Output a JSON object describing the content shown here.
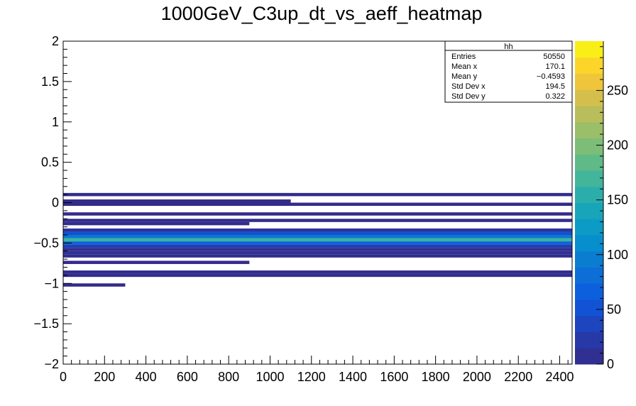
{
  "chart_data": {
    "type": "heatmap",
    "title": "1000GeV_C3up_dt_vs_aeff_heatmap",
    "xlabel": "",
    "ylabel": "",
    "xlim": [
      0,
      2460
    ],
    "ylim": [
      -2,
      2
    ],
    "x_ticks": [
      "0",
      "200",
      "400",
      "600",
      "800",
      "1000",
      "1200",
      "1400",
      "1600",
      "1800",
      "2000",
      "2200",
      "2400"
    ],
    "y_ticks": [
      "2",
      "1.5",
      "1",
      "0.5",
      "0",
      "−0.5",
      "−1",
      "−1.5",
      "−2"
    ],
    "colorbar": {
      "range": [
        0,
        295
      ],
      "ticks": [
        "0",
        "50",
        "100",
        "150",
        "200",
        "250"
      ]
    },
    "stats_box": {
      "title": "hh",
      "rows": [
        {
          "label": "Entries",
          "value": "50550"
        },
        {
          "label": "Mean x",
          "value": "170.1"
        },
        {
          "label": "Mean y",
          "value": "−0.4593"
        },
        {
          "label": "Std Dev x",
          "value": "194.5"
        },
        {
          "label": "Std Dev y",
          "value": "0.322"
        }
      ]
    },
    "bands": [
      {
        "x": [
          0,
          2460
        ],
        "y": [
          0.08,
          0.12
        ],
        "count": 3
      },
      {
        "x": [
          0,
          1100
        ],
        "y": [
          0.0,
          0.04
        ],
        "count": 2
      },
      {
        "x": [
          0,
          2460
        ],
        "y": [
          -0.04,
          0.0
        ],
        "count": 3
      },
      {
        "x": [
          0,
          2460
        ],
        "y": [
          -0.16,
          -0.12
        ],
        "count": 3
      },
      {
        "x": [
          0,
          2460
        ],
        "y": [
          -0.24,
          -0.2
        ],
        "count": 4
      },
      {
        "x": [
          0,
          900
        ],
        "y": [
          -0.28,
          -0.24
        ],
        "count": 4
      },
      {
        "x": [
          0,
          2460
        ],
        "y": [
          -0.36,
          -0.32
        ],
        "count": 15
      },
      {
        "x": [
          0,
          2460
        ],
        "y": [
          -0.4,
          -0.36
        ],
        "count": 50
      },
      {
        "x": [
          0,
          2460
        ],
        "y": [
          -0.44,
          -0.4
        ],
        "count": 90
      },
      {
        "x": [
          0,
          2460
        ],
        "y": [
          -0.48,
          -0.44
        ],
        "count": 165
      },
      {
        "x": [
          0,
          2460
        ],
        "y": [
          -0.52,
          -0.48
        ],
        "count": 70
      },
      {
        "x": [
          0,
          2460
        ],
        "y": [
          -0.56,
          -0.52
        ],
        "count": 28
      },
      {
        "x": [
          0,
          2460
        ],
        "y": [
          -0.6,
          -0.56
        ],
        "count": 5
      },
      {
        "x": [
          0,
          2460
        ],
        "y": [
          -0.64,
          -0.6
        ],
        "count": 12
      },
      {
        "x": [
          0,
          2460
        ],
        "y": [
          -0.68,
          -0.64
        ],
        "count": 4
      },
      {
        "x": [
          0,
          900
        ],
        "y": [
          -0.76,
          -0.72
        ],
        "count": 2
      },
      {
        "x": [
          0,
          2460
        ],
        "y": [
          -0.88,
          -0.84
        ],
        "count": 4
      },
      {
        "x": [
          0,
          2460
        ],
        "y": [
          -0.92,
          -0.88
        ],
        "count": 5
      },
      {
        "x": [
          0,
          300
        ],
        "y": [
          -1.04,
          -1.0
        ],
        "count": 3
      }
    ]
  }
}
